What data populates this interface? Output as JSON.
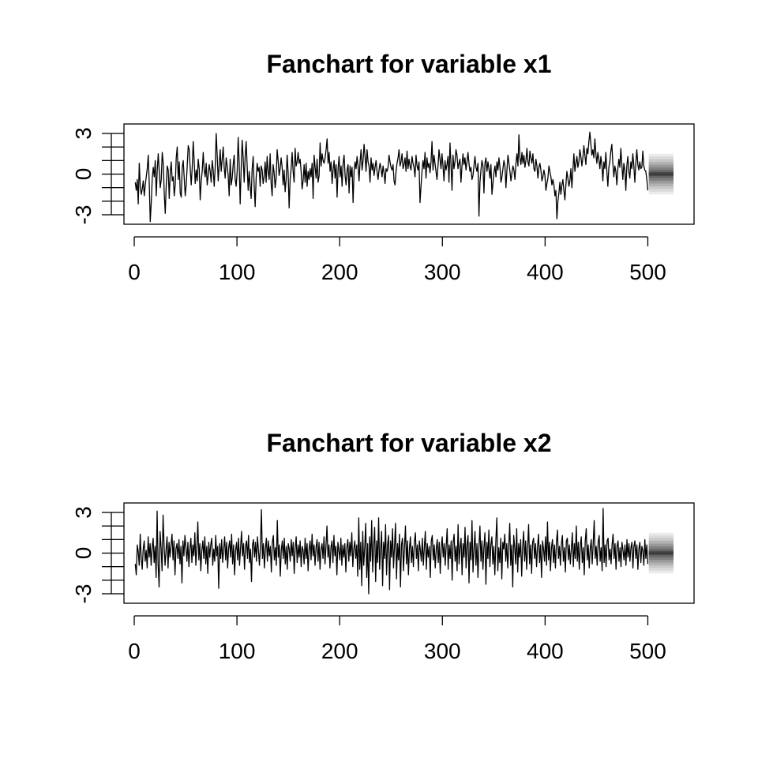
{
  "chart_data": [
    {
      "type": "line",
      "title": "Fanchart for variable x1",
      "xlabel": "",
      "ylabel": "",
      "xlim": [
        -10,
        545
      ],
      "ylim": [
        -3.7,
        3.7
      ],
      "x_ticks": [
        "0",
        "100",
        "200",
        "300",
        "400",
        "500"
      ],
      "y_ticks": [
        "-3",
        "0",
        "3"
      ],
      "y_minor_tick_step": 1,
      "series": [
        {
          "x_start": 1,
          "x_end": 500,
          "values": [
            -0.6,
            -1.2,
            -0.4,
            -2.2,
            0.8,
            -0.9,
            -1.5,
            -1.1,
            -0.5,
            -1.6,
            -0.8,
            -0.2,
            0.4,
            1.4,
            -0.7,
            -3.5,
            -2.1,
            -0.3,
            0.5,
            -0.2,
            1.0,
            -1.6,
            0.3,
            1.5,
            0.2,
            -1.0,
            -0.4,
            1.6,
            0.8,
            -1.4,
            -2.9,
            -0.8,
            0.6,
            0.3,
            -1.8,
            0.1,
            0.9,
            -0.5,
            -0.2,
            -1.6,
            -0.8,
            1.2,
            2.0,
            -0.4,
            0.9,
            -1.4,
            -1.7,
            0.5,
            1.0,
            -0.3,
            -1.6,
            -0.8,
            0.6,
            2.1,
            1.8,
            0.4,
            -0.8,
            0.5,
            2.4,
            0.9,
            -0.7,
            0.3,
            -0.5,
            1.1,
            0.4,
            -1.9,
            -0.5,
            0.2,
            1.6,
            0.3,
            -0.2,
            0.8,
            -0.8,
            -0.1,
            0.7,
            0.2,
            -0.6,
            1.0,
            0.3,
            -0.9,
            0.5,
            3.0,
            1.4,
            -0.5,
            0.6,
            1.8,
            0.2,
            1.1,
            2.0,
            0.5,
            -0.3,
            1.2,
            0.6,
            -0.1,
            -1.6,
            1.1,
            -0.8,
            -0.3,
            0.7,
            1.4,
            -0.4,
            -0.9,
            0.2,
            2.7,
            0.8,
            -2.2,
            0.4,
            2.5,
            1.2,
            -0.6,
            1.3,
            2.4,
            0.6,
            -1.2,
            0.2,
            -0.9,
            -1.8,
            0.4,
            1.3,
            -0.8,
            -2.4,
            -0.3,
            0.8,
            0.2,
            0.5,
            -0.9,
            0.6,
            0.3,
            -0.7,
            -0.2,
            0.9,
            -0.6,
            1.3,
            0.2,
            -0.4,
            1.5,
            -0.7,
            -1.6,
            0.7,
            0.1,
            -1.0,
            -0.3,
            1.8,
            1.0,
            -0.1,
            0.4,
            1.2,
            0.5,
            -0.8,
            0.3,
            -1.3,
            -0.4,
            1.4,
            0.1,
            -2.5,
            -0.4,
            0.4,
            1.6,
            0.2,
            -0.6,
            1.9,
            0.6,
            0.9,
            1.6,
            0.8,
            1.1,
            0.2,
            -1.1,
            -0.5,
            0.7,
            -0.6,
            0.8,
            -0.9,
            0.2,
            -0.4,
            0.4,
            -0.2,
            0.8,
            -1.8,
            1.4,
            0.5,
            -0.3,
            1.1,
            -0.6,
            -0.1,
            2.3,
            0.6,
            1.5,
            1.0,
            0.8,
            1.2,
            1.8,
            2.6,
            0.8,
            1.6,
            0.2,
            0.9,
            -0.7,
            0.3,
            1.0,
            -0.3,
            0.7,
            -1.7,
            0.4,
            1.3,
            -0.2,
            0.6,
            -0.9,
            0.8,
            1.4,
            -0.1,
            -0.8,
            0.3,
            0.7,
            -1.4,
            0.6,
            -0.2,
            0.5,
            -2.1,
            0.2,
            0.9,
            0.4,
            1.3,
            0.6,
            -0.5,
            0.9,
            1.8,
            0.3,
            1.0,
            2.2,
            1.3,
            0.2,
            1.8,
            0.9,
            0.6,
            -0.6,
            1.2,
            0.3,
            0.8,
            -0.1,
            0.5,
            1.0,
            0.2,
            -0.4,
            0.3,
            0.8,
            0.4,
            -0.2,
            0.6,
            0.1,
            -0.7,
            0.4,
            0.2,
            0.5,
            1.4,
            0.9,
            0.5,
            0.3,
            0.7,
            -0.5,
            -0.8,
            0.2,
            0.8,
            1.2,
            1.8,
            0.6,
            0.9,
            1.5,
            0.4,
            0.7,
            1.2,
            0.2,
            1.7,
            0.4,
            1.1,
            0.6,
            0.3,
            1.3,
            0.8,
            0.5,
            -0.2,
            1.4,
            0.6,
            0.3,
            0.9,
            -2.1,
            -0.9,
            0.2,
            1.0,
            0.4,
            1.6,
            -0.3,
            1.2,
            0.5,
            0.8,
            0.1,
            0.9,
            2.4,
            0.3,
            1.4,
            0.8,
            0.2,
            -0.4,
            0.6,
            1.8,
            1.1,
            0.4,
            1.5,
            0.6,
            -0.5,
            1.0,
            0.3,
            0.7,
            1.3,
            -0.6,
            2.3,
            0.7,
            -1.2,
            1.4,
            0.4,
            0.9,
            1.8,
            1.4,
            0.4,
            0.8,
            1.1,
            -0.6,
            0.6,
            1.5,
            0.7,
            1.2,
            0.3,
            0.9,
            1.6,
            0.8,
            0.2,
            0.5,
            -0.4,
            -0.1,
            0.6,
            1.3,
            0.5,
            0.2,
            0.8,
            -3.1,
            -0.6,
            0.3,
            1.0,
            0.6,
            -1.4,
            0.8,
            1.2,
            0.2,
            0.9,
            0.4,
            -0.3,
            0.7,
            -1.5,
            -0.7,
            0.1,
            0.6,
            -0.2,
            0.9,
            0.3,
            1.2,
            0.5,
            -0.6,
            -0.2,
            0.4,
            1.0,
            0.6,
            -1.0,
            0.3,
            1.4,
            0.8,
            0.2,
            -0.5,
            0.1,
            0.6,
            0.3,
            -0.4,
            0.8,
            1.5,
            0.6,
            2.9,
            1.2,
            0.7,
            1.6,
            0.8,
            1.4,
            0.5,
            1.0,
            1.9,
            0.9,
            0.6,
            1.7,
            1.2,
            0.8,
            1.5,
            0.4,
            0.2,
            1.1,
            0.6,
            -0.3,
            0.5,
            0.8,
            0.3,
            -0.5,
            -0.2,
            0.3,
            -0.1,
            -1.2,
            -0.7,
            -0.3,
            0.6,
            0.2,
            -0.2,
            -0.8,
            -0.4,
            -0.8,
            -1.6,
            -1.2,
            -3.3,
            -2.0,
            -1.4,
            -0.6,
            -1.5,
            -0.8,
            -0.4,
            -1.2,
            -1.9,
            -0.8,
            0.2,
            -0.3,
            -0.9,
            -0.5,
            0.4,
            -1.0,
            0.3,
            1.5,
            0.2,
            0.8,
            1.3,
            0.5,
            0.9,
            1.8,
            1.3,
            0.6,
            1.2,
            2.1,
            1.4,
            0.7,
            1.9,
            1.5,
            2.4,
            3.1,
            2.2,
            1.4,
            1.8,
            1.2,
            2.6,
            1.5,
            0.8,
            1.6,
            1.1,
            0.4,
            1.3,
            0.7,
            -0.5,
            0.9,
            0.4,
            1.6,
            0.2,
            -0.9,
            0.5,
            0.9,
            1.7,
            2.2,
            0.8,
            -0.2,
            0.6,
            0.2,
            -0.8,
            0.4,
            1.1,
            0.5,
            1.9,
            0.7,
            -0.4,
            0.8,
            0.3,
            -1.2,
            0.6,
            1.3,
            0.2,
            -0.3,
            0.9,
            0.4,
            1.5,
            0.6,
            -0.6,
            0.8,
            1.8,
            0.7,
            0.3,
            0.9,
            0.4,
            0.5,
            1.7,
            0.6,
            0.3,
            0.2,
            -0.4,
            -1.2
          ]
        }
      ],
      "forecast": {
        "x_start": 501,
        "x_end": 525,
        "center": 0,
        "band_limits": [
          0.15,
          0.3,
          0.5,
          0.7,
          0.9,
          1.1,
          1.3,
          1.5
        ],
        "band_colors": [
          "#4a4a4a",
          "#666666",
          "#808080",
          "#9a9a9a",
          "#b2b2b2",
          "#c8c8c8",
          "#dadada",
          "#ebebeb"
        ]
      }
    },
    {
      "type": "line",
      "title": "Fanchart for variable x2",
      "xlabel": "",
      "ylabel": "",
      "xlim": [
        -10,
        545
      ],
      "ylim": [
        -3.7,
        3.7
      ],
      "x_ticks": [
        "0",
        "100",
        "200",
        "300",
        "400",
        "500"
      ],
      "y_ticks": [
        "-3",
        "0",
        "3"
      ],
      "y_minor_tick_step": 1,
      "series": [
        {
          "x_start": 1,
          "x_end": 500,
          "values": [
            -0.8,
            -1.6,
            0.6,
            0.1,
            -0.9,
            1.4,
            -0.4,
            -1.2,
            0.3,
            0.9,
            -0.6,
            0.2,
            -1.1,
            1.2,
            -0.3,
            0.7,
            -0.9,
            0.4,
            1.1,
            -0.7,
            0.5,
            -1.8,
            3.1,
            -0.8,
            -2.5,
            1.6,
            0.4,
            -1.3,
            2.8,
            0.6,
            -0.9,
            0.2,
            1.2,
            -1.1,
            0.8,
            -0.3,
            0.6,
            1.4,
            -0.5,
            0.9,
            -1.6,
            0.3,
            0.7,
            -0.4,
            1.0,
            -0.8,
            0.5,
            -2.2,
            0.9,
            -0.2,
            1.3,
            0.4,
            -0.6,
            0.8,
            -1.0,
            0.3,
            1.1,
            -0.7,
            0.6,
            -0.2,
            1.5,
            -0.9,
            0.4,
            2.3,
            -0.5,
            0.7,
            -1.3,
            0.2,
            0.9,
            -0.4,
            1.2,
            -0.8,
            0.5,
            -1.5,
            0.8,
            -0.3,
            0.6,
            1.1,
            -0.9,
            0.3,
            -0.6,
            1.3,
            -0.2,
            0.5,
            -2.6,
            0.7,
            -0.4,
            1.0,
            -0.7,
            0.3,
            1.2,
            -0.5,
            0.8,
            -1.1,
            0.4,
            0.9,
            -0.3,
            1.4,
            -0.8,
            0.6,
            -1.6,
            0.2,
            0.8,
            -0.5,
            1.1,
            -0.9,
            0.4,
            1.6,
            -0.2,
            0.7,
            -1.2,
            0.5,
            0.9,
            -0.4,
            1.3,
            -0.7,
            0.3,
            -2.1,
            0.6,
            1.0,
            -0.3,
            0.8,
            -0.6,
            1.2,
            0.2,
            -0.9,
            0.5,
            3.2,
            -0.4,
            0.7,
            -1.1,
            0.3,
            1.1,
            -0.6,
            0.9,
            -0.2,
            0.5,
            -1.4,
            0.8,
            1.3,
            -0.5,
            0.4,
            -0.9,
            2.4,
            -0.3,
            0.6,
            -1.7,
            0.2,
            0.9,
            -0.4,
            1.1,
            -0.8,
            0.5,
            -1.2,
            0.7,
            0.3,
            -0.6,
            1.0,
            -0.2,
            0.8,
            -1.5,
            0.4,
            1.2,
            -0.7,
            0.6,
            -0.3,
            0.9,
            -1.0,
            0.5,
            0.2,
            -0.8,
            1.1,
            -0.4,
            0.7,
            -1.3,
            0.3,
            0.9,
            -0.5,
            1.4,
            -0.2,
            0.6,
            -0.9,
            0.4,
            1.0,
            -0.6,
            0.8,
            -1.2,
            0.3,
            0.7,
            -0.4,
            1.2,
            -0.8,
            0.5,
            2.0,
            -0.3,
            0.6,
            -1.1,
            0.4,
            0.9,
            -0.7,
            1.3,
            -0.2,
            0.5,
            -1.6,
            0.8,
            0.2,
            -0.5,
            1.1,
            -0.9,
            0.6,
            -0.3,
            0.7,
            -1.4,
            0.4,
            1.0,
            -0.6,
            0.8,
            -0.2,
            1.5,
            -1.0,
            0.3,
            0.9,
            -0.4,
            0.6,
            -1.7,
            2.6,
            -1.2,
            0.8,
            -2.4,
            1.6,
            -0.9,
            0.4,
            2.2,
            -1.8,
            0.7,
            -3.0,
            1.2,
            -0.6,
            2.4,
            -1.4,
            0.5,
            1.9,
            -2.1,
            0.9,
            -0.7,
            2.6,
            -1.2,
            0.3,
            1.6,
            -2.4,
            0.8,
            -0.4,
            2.1,
            -1.6,
            0.6,
            1.3,
            -2.7,
            0.9,
            -0.3,
            1.8,
            -1.1,
            0.5,
            2.2,
            -1.9,
            0.7,
            -0.5,
            1.4,
            -2.5,
            0.6,
            1.1,
            -1.3,
            0.4,
            2.0,
            -0.8,
            0.9,
            -1.6,
            0.3,
            1.2,
            -0.7,
            0.5,
            -1.0,
            0.8,
            1.5,
            -0.4,
            0.6,
            -1.3,
            0.9,
            0.2,
            -0.6,
            1.1,
            -0.9,
            0.4,
            1.6,
            -1.2,
            0.7,
            -0.3,
            0.5,
            -1.8,
            0.9,
            1.3,
            -0.5,
            0.6,
            -1.1,
            0.3,
            1.0,
            -0.7,
            0.8,
            -1.5,
            0.4,
            1.2,
            -0.3,
            0.7,
            -0.9,
            0.5,
            1.8,
            -1.2,
            0.6,
            -0.4,
            0.9,
            -2.0,
            0.8,
            1.4,
            -0.6,
            0.5,
            -1.3,
            2.1,
            -0.8,
            0.4,
            1.1,
            -1.6,
            0.7,
            -0.3,
            1.9,
            -1.1,
            0.6,
            1.3,
            -2.2,
            0.8,
            -0.5,
            2.4,
            -1.4,
            0.3,
            1.6,
            -0.9,
            0.7,
            -1.8,
            0.5,
            2.0,
            -0.6,
            0.9,
            -1.2,
            0.4,
            1.5,
            -2.3,
            0.8,
            -0.4,
            1.7,
            -1.0,
            0.6,
            1.2,
            -0.8,
            0.5,
            -1.6,
            0.9,
            2.6,
            -1.3,
            0.4,
            -0.7,
            1.1,
            -1.9,
            0.8,
            0.3,
            1.4,
            -0.6,
            0.7,
            -1.1,
            0.5,
            2.2,
            -0.9,
            0.6,
            -2.5,
            1.3,
            0.4,
            -0.8,
            1.8,
            -1.4,
            0.7,
            -0.3,
            1.0,
            -1.7,
            0.5,
            1.6,
            -0.6,
            0.9,
            -1.2,
            0.4,
            2.1,
            -0.8,
            0.6,
            -1.5,
            0.8,
            1.1,
            -0.4,
            0.7,
            -1.0,
            0.5,
            1.4,
            -0.7,
            0.6,
            -1.8,
            0.9,
            0.3,
            -0.6,
            1.2,
            -0.9,
            2.3,
            -0.5,
            0.8,
            -1.3,
            0.4,
            1.0,
            -0.7,
            0.6,
            -1.1,
            0.8,
            1.7,
            -0.4,
            0.5,
            -0.9,
            0.7,
            1.3,
            -0.6,
            0.4,
            -1.4,
            0.9,
            1.1,
            -0.5,
            0.6,
            -0.8,
            0.3,
            1.5,
            -1.0,
            0.7,
            -0.4,
            2.0,
            -0.6,
            0.8,
            -1.2,
            0.5,
            1.2,
            -0.7,
            0.4,
            -1.6,
            0.9,
            1.8,
            -0.5,
            0.6,
            -1.1,
            0.3,
            1.0,
            -0.8,
            0.7,
            2.4,
            -0.4,
            0.5,
            -0.9,
            0.8,
            1.3,
            -0.6,
            0.4,
            -1.3,
            3.3,
            -0.7,
            0.6,
            -1.0,
            0.9,
            1.1,
            -0.5,
            0.3,
            -0.8,
            0.6,
            1.4,
            -0.4,
            0.7,
            -1.2,
            0.5,
            0.9,
            -0.6,
            0.4,
            -1.0,
            0.8,
            0.2,
            -0.5,
            0.6,
            -0.9,
            1.0,
            -0.3,
            0.7,
            -0.6,
            0.4,
            0.8,
            -1.1,
            0.5,
            0.9,
            -0.4,
            0.6,
            -1.2,
            0.3,
            0.8,
            -0.7,
            0.5,
            0.2,
            -0.9,
            1.0,
            -0.4,
            0.6,
            -0.8
          ]
        }
      ],
      "forecast": {
        "x_start": 501,
        "x_end": 525,
        "center": 0,
        "band_limits": [
          0.15,
          0.3,
          0.5,
          0.7,
          0.9,
          1.1,
          1.3,
          1.5
        ],
        "band_colors": [
          "#4a4a4a",
          "#666666",
          "#808080",
          "#9a9a9a",
          "#b2b2b2",
          "#c8c8c8",
          "#dadada",
          "#ebebeb"
        ]
      }
    }
  ]
}
